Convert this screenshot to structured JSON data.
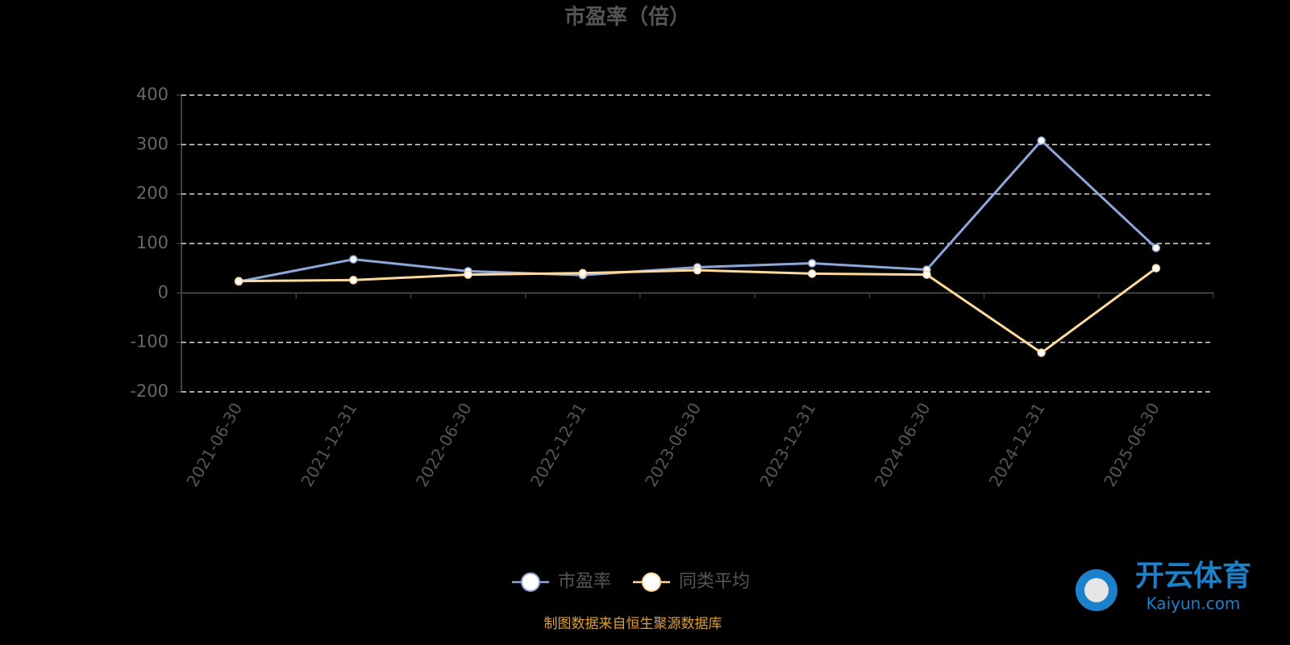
{
  "chart_data": {
    "type": "line",
    "title": "市盈率（倍）",
    "categories": [
      "2021-06-30",
      "2021-12-31",
      "2022-06-30",
      "2022-12-31",
      "2023-06-30",
      "2023-12-31",
      "2024-06-30",
      "2024-12-31",
      "2025-06-30"
    ],
    "series": [
      {
        "name": "市盈率",
        "color": "#8ea7d9",
        "values": [
          23,
          68,
          44,
          36,
          52,
          60,
          47,
          308,
          91
        ]
      },
      {
        "name": "同类平均",
        "color": "#ffd89c",
        "values": [
          24,
          26,
          37,
          40,
          46,
          39,
          37,
          -121,
          50
        ]
      }
    ],
    "ylim": [
      -200,
      400
    ],
    "yticks": [
      -200,
      -100,
      0,
      100,
      200,
      300,
      400
    ],
    "grid": true,
    "source": "制图数据来自恒生聚源数据库",
    "watermark": {
      "name": "开云体育",
      "site": "Kaiyun.com"
    }
  }
}
